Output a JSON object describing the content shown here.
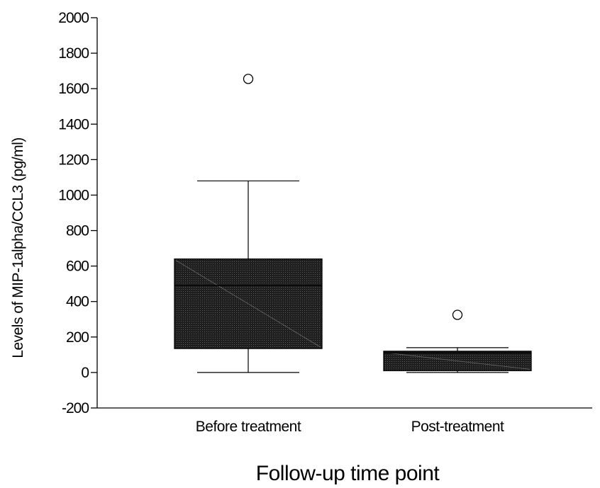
{
  "chart_data": {
    "type": "boxplot",
    "title": "",
    "xlabel": "Follow-up time point",
    "ylabel": "Levels of MIP-1alpha/CCL3 (pg/ml)",
    "ylim": [
      -200,
      2000
    ],
    "yticks": [
      -200,
      0,
      200,
      400,
      600,
      800,
      1000,
      1200,
      1400,
      1600,
      1800,
      2000
    ],
    "grid": false,
    "categories": [
      "Before treatment",
      "Post-treatment"
    ],
    "boxes": [
      {
        "category": "Before treatment",
        "whisker_low": 0,
        "q1": 135,
        "median": 490,
        "q3": 640,
        "whisker_high": 1080,
        "outliers": [
          1655
        ]
      },
      {
        "category": "Post-treatment",
        "whisker_low": 0,
        "q1": 10,
        "median": 110,
        "q3": 120,
        "whisker_high": 140,
        "outliers": [
          325
        ]
      }
    ],
    "box_fill": "#2a2a2a",
    "line_color": "#000000"
  }
}
